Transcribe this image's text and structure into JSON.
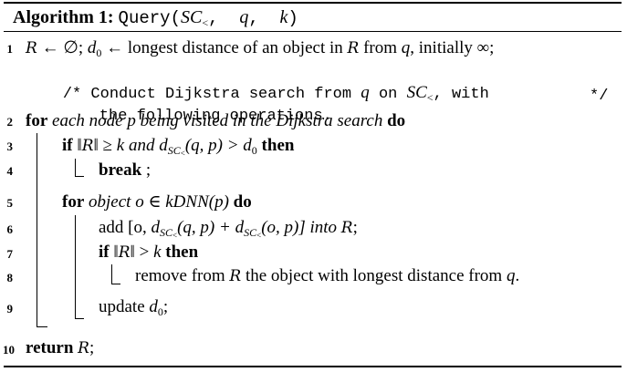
{
  "title": {
    "label": "Algorithm 1:",
    "func": "Query",
    "args_open": "(",
    "arg1": "SC",
    "arg1_sub": "<",
    "sep1": ",  ",
    "arg2": "q",
    "sep2": ",  ",
    "arg3": "k",
    "args_close": ")"
  },
  "lines": {
    "l1": {
      "num": "1",
      "R": "R",
      "a": " ← ∅; ",
      "d": "d",
      "dsub": "0",
      "b": " ← longest distance of an object in ",
      "R2": "R",
      "c": " from ",
      "q": "q",
      "e": ", initially ∞;"
    },
    "comment": {
      "open": "/* ",
      "t1": "Conduct Dijkstra search from ",
      "q": "q",
      "t2": " on ",
      "sc": "SC",
      "sub": "<",
      "t3": ", with",
      "line2": "the following operations.",
      "close": "*/"
    },
    "l2": {
      "num": "2",
      "kw": "for",
      "text": " each node p being visited in the Dijkstra search ",
      "kw2": "do"
    },
    "l3": {
      "num": "3",
      "kw": "if",
      "a": " ‖",
      "R": "R",
      "b": "‖ ≥ ",
      "k": "k",
      "c": " and ",
      "d": "d",
      "dsub": "SC",
      "dsubsub": "<",
      "e": "(q, p) > ",
      "d0": "d",
      "d0sub": "0",
      "kw2": " then"
    },
    "l4": {
      "num": "4",
      "kw": "break",
      "text": " ;"
    },
    "l5": {
      "num": "5",
      "kw": "for",
      "text": " object o ∈ kDNN(p) ",
      "kw2": "do"
    },
    "l6": {
      "num": "6",
      "a": "add [o, ",
      "d1": "d",
      "s1": "SC",
      "ss1": "<",
      "b": "(q, p) + ",
      "d2": "d",
      "s2": "SC",
      "ss2": "<",
      "c": "(o, p)] into ",
      "R": "R",
      "e": ";"
    },
    "l7": {
      "num": "7",
      "kw": "if",
      "a": " ‖",
      "R": "R",
      "b": "‖ > ",
      "k": "k",
      "kw2": " then"
    },
    "l8": {
      "num": "8",
      "a": "remove from ",
      "R": "R",
      "b": " the object with longest distance from ",
      "q": "q",
      "c": "."
    },
    "l9": {
      "num": "9",
      "a": "update ",
      "d": "d",
      "dsub": "0",
      "b": ";"
    },
    "l10": {
      "num": "10",
      "kw": "return",
      "sp": " ",
      "R": "R",
      "e": ";"
    }
  }
}
